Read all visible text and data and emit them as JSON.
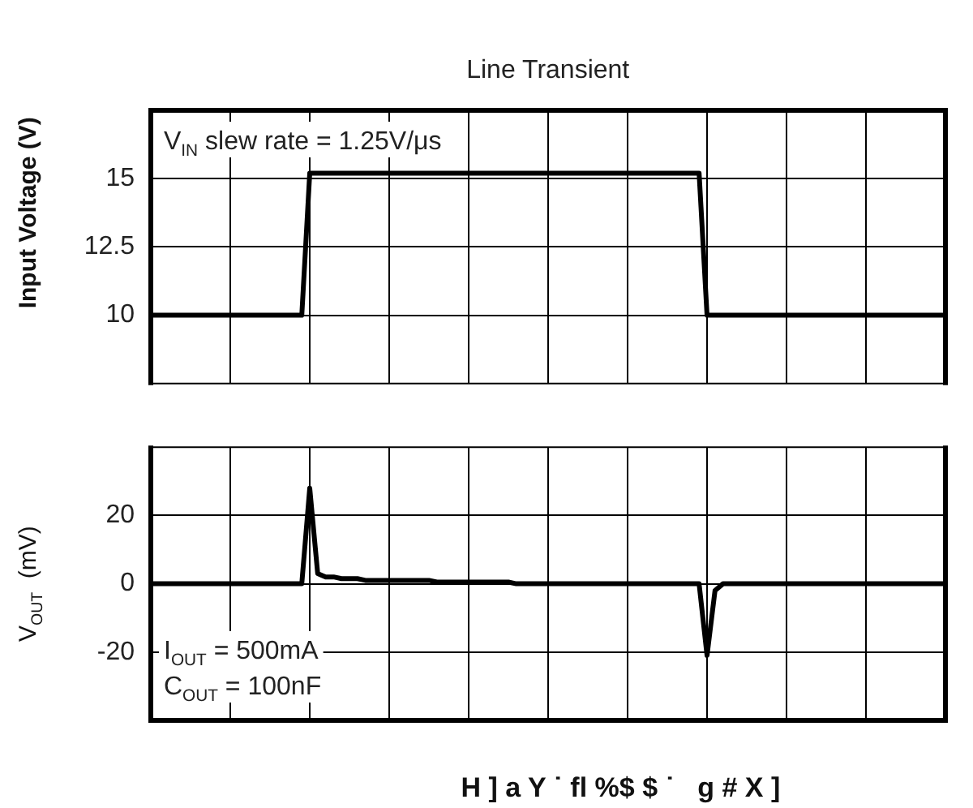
{
  "chart_data": [
    {
      "type": "line",
      "title": "Line Transient",
      "ylabel": "Input Voltage (V)",
      "annotations": [
        "V$_{IN}$ slew rate = 1.25V/μs"
      ],
      "categories": [
        null,
        null,
        null,
        null,
        null,
        null,
        null,
        null,
        null,
        null,
        null,
        null,
        null,
        null,
        null,
        null,
        null,
        null,
        null,
        null,
        null,
        null,
        null,
        null,
        null,
        null,
        null,
        null,
        null,
        null,
        null,
        null,
        null,
        null,
        null,
        null,
        null,
        null,
        null,
        null,
        null,
        null,
        null,
        null,
        null,
        null,
        null,
        null,
        null,
        null,
        null,
        null,
        null,
        null,
        null,
        null,
        null,
        null,
        null,
        null,
        null,
        null,
        null,
        null,
        null,
        null,
        null,
        null,
        null,
        null,
        null,
        null,
        null,
        null,
        null,
        null,
        null,
        null,
        null,
        null,
        null,
        null,
        null,
        null,
        null,
        null,
        null,
        null,
        null,
        null,
        null,
        null,
        null,
        null,
        null,
        null,
        null,
        null,
        null,
        null,
        null
      ],
      "ylim": [
        7.5,
        17.5
      ],
      "yticks": [
        10,
        12.5,
        15
      ],
      "grid": true,
      "tick_labels": "y",
      "marker": "none",
      "line_style": "solid",
      "series": [
        {
          "color": "#000000",
          "values": [
            10,
            10,
            10,
            10,
            10,
            10,
            10,
            10,
            10,
            10,
            10,
            10,
            10,
            10,
            10,
            10,
            10,
            10,
            10,
            10,
            15.2,
            15.2,
            15.2,
            15.2,
            15.2,
            15.2,
            15.2,
            15.2,
            15.2,
            15.2,
            15.2,
            15.2,
            15.2,
            15.2,
            15.2,
            15.2,
            15.2,
            15.2,
            15.2,
            15.2,
            15.2,
            15.2,
            15.2,
            15.2,
            15.2,
            15.2,
            15.2,
            15.2,
            15.2,
            15.2,
            15.2,
            15.2,
            15.2,
            15.2,
            15.2,
            15.2,
            15.2,
            15.2,
            15.2,
            15.2,
            15.2,
            15.2,
            15.2,
            15.2,
            15.2,
            15.2,
            15.2,
            15.2,
            15.2,
            15.2,
            10,
            10,
            10,
            10,
            10,
            10,
            10,
            10,
            10,
            10,
            10,
            10,
            10,
            10,
            10,
            10,
            10,
            10,
            10,
            10,
            10,
            10,
            10,
            10,
            10,
            10,
            10,
            10,
            10,
            10,
            10
          ]
        }
      ]
    },
    {
      "type": "line",
      "xlabel": "H ] a Y ˙ fl %$ $ ˙   g # X ]",
      "ylabel": "V$_{OUT}$  (mV)",
      "annotations": [
        "I$_{OUT}$ = 500mA",
        "C$_{OUT}$ = 100nF"
      ],
      "categories": [
        null,
        null,
        null,
        null,
        null,
        null,
        null,
        null,
        null,
        null,
        null,
        null,
        null,
        null,
        null,
        null,
        null,
        null,
        null,
        null,
        null,
        null,
        null,
        null,
        null,
        null,
        null,
        null,
        null,
        null,
        null,
        null,
        null,
        null,
        null,
        null,
        null,
        null,
        null,
        null,
        null,
        null,
        null,
        null,
        null,
        null,
        null,
        null,
        null,
        null,
        null,
        null,
        null,
        null,
        null,
        null,
        null,
        null,
        null,
        null,
        null,
        null,
        null,
        null,
        null,
        null,
        null,
        null,
        null,
        null,
        null,
        null,
        null,
        null,
        null,
        null,
        null,
        null,
        null,
        null,
        null,
        null,
        null,
        null,
        null,
        null,
        null,
        null,
        null,
        null,
        null,
        null,
        null,
        null,
        null,
        null,
        null,
        null,
        null,
        null,
        null
      ],
      "ylim": [
        -40,
        40
      ],
      "yticks": [
        -20,
        0,
        20
      ],
      "grid": true,
      "tick_labels": "y",
      "marker": "none",
      "line_style": "solid",
      "series": [
        {
          "color": "#000000",
          "values": [
            0,
            0,
            0,
            0,
            0,
            0,
            0,
            0,
            0,
            0,
            0,
            0,
            0,
            0,
            0,
            0,
            0,
            0,
            0,
            0,
            28,
            3,
            2,
            2,
            1.5,
            1.5,
            1.5,
            1,
            1,
            1,
            1,
            1,
            1,
            1,
            1,
            1,
            0.5,
            0.5,
            0.5,
            0.5,
            0.5,
            0.5,
            0.5,
            0.5,
            0.5,
            0.5,
            0,
            0,
            0,
            0,
            0,
            0,
            0,
            0,
            0,
            0,
            0,
            0,
            0,
            0,
            0,
            0,
            0,
            0,
            0,
            0,
            0,
            0,
            0,
            0,
            -21,
            -2,
            0,
            0,
            0,
            0,
            0,
            0,
            0,
            0,
            0,
            0,
            0,
            0,
            0,
            0,
            0,
            0,
            0,
            0,
            0,
            0,
            0,
            0,
            0,
            0,
            0,
            0,
            0,
            0,
            0
          ]
        }
      ]
    }
  ]
}
